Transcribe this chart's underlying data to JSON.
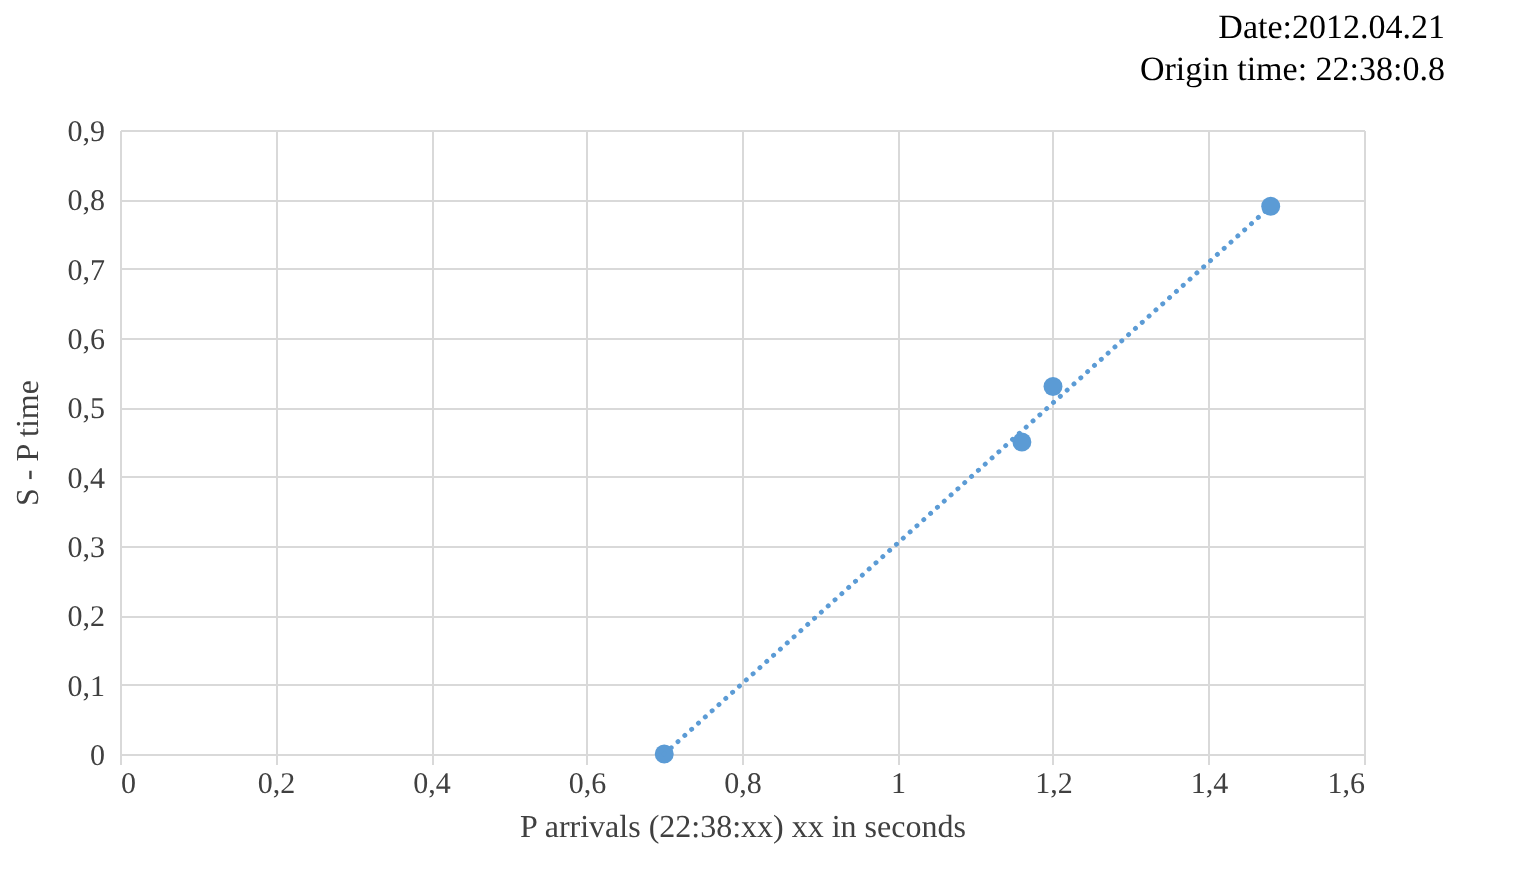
{
  "chart_data": {
    "type": "scatter",
    "title": "Date:2012.04.21",
    "subtitle": "Origin time: 22:38:0.8",
    "xlabel": "P arrivals (22:38:xx)  xx in seconds",
    "ylabel": "S - P time",
    "xlim": [
      0,
      1.6
    ],
    "xticks": [
      0,
      {
        "value": 0.2,
        "label": "0,2"
      },
      {
        "value": 0.4,
        "label": "0,4"
      },
      {
        "value": 0.6,
        "label": "0,6"
      },
      {
        "value": 0.8,
        "label": "0,8"
      },
      1,
      {
        "value": 1.2,
        "label": "1,2"
      },
      {
        "value": 1.4,
        "label": "1,4"
      },
      {
        "value": 1.6,
        "label": "1,6"
      }
    ],
    "ylim": [
      0,
      0.9
    ],
    "yticks": [
      0,
      {
        "value": 0.1,
        "label": "0,1"
      },
      {
        "value": 0.2,
        "label": "0,2"
      },
      {
        "value": 0.3,
        "label": "0,3"
      },
      {
        "value": 0.4,
        "label": "0,4"
      },
      {
        "value": 0.5,
        "label": "0,5"
      },
      {
        "value": 0.6,
        "label": "0,6"
      },
      {
        "value": 0.7,
        "label": "0,7"
      },
      {
        "value": 0.8,
        "label": "0,8"
      },
      {
        "value": 0.9,
        "label": "0,9"
      }
    ],
    "grid": true,
    "series": [
      {
        "type": "scatter",
        "marker": "circle",
        "color": "#5b9bd5",
        "x": [
          0.7,
          1.16,
          1.2,
          1.48
        ],
        "values": [
          0,
          0.45,
          0.53,
          0.79
        ]
      },
      {
        "type": "line",
        "color": "#5b9bd5",
        "line_style": "dotted",
        "x": [
          0.7,
          1.48
        ],
        "values": [
          0,
          0.79
        ]
      }
    ]
  }
}
